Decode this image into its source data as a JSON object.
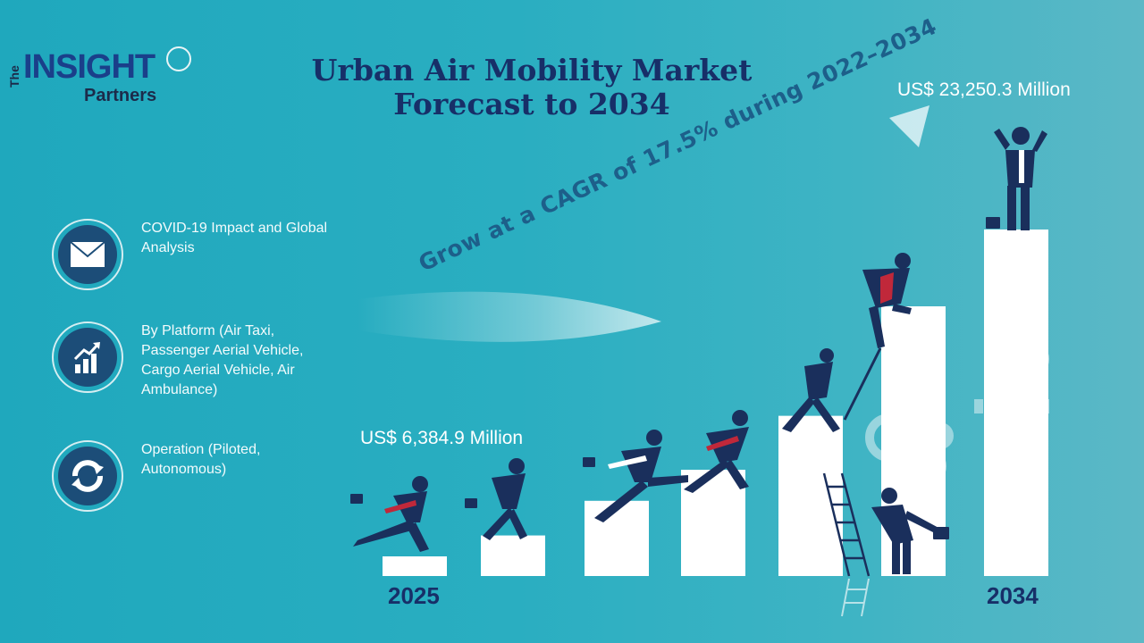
{
  "logo": {
    "the": "The",
    "main": "INSIGHT",
    "sub": "Partners"
  },
  "title_line1": "Urban Air Mobility Market",
  "title_line2": "Forecast to 2034",
  "cagr_text": "Grow at a CAGR of 17.5% during 2022–2034",
  "side_items": [
    {
      "icon": "envelope-icon",
      "text": "COVID-19 Impact and Global\nAnalysis"
    },
    {
      "icon": "growth-chart-icon",
      "text": "By Platform  (Air Taxi,\nPassenger Aerial Vehicle,\nCargo Aerial Vehicle, Air\nAmbulance)"
    },
    {
      "icon": "refresh-arrows-icon",
      "text": "Operation (Piloted,\nAutonomous)"
    }
  ],
  "chart_data": {
    "type": "bar",
    "start_label": "US$ 6,384.9 Million",
    "end_label": "US$ 23,250.3 Million",
    "start_year": "2025",
    "end_year": "2034",
    "values": [
      6384.9,
      23250.3
    ]
  },
  "colors": {
    "bar": "#ffffff",
    "title": "#172f68",
    "figure": "#1a2f5c",
    "tie": "#c0283a",
    "gear": "#a9dbe3"
  }
}
